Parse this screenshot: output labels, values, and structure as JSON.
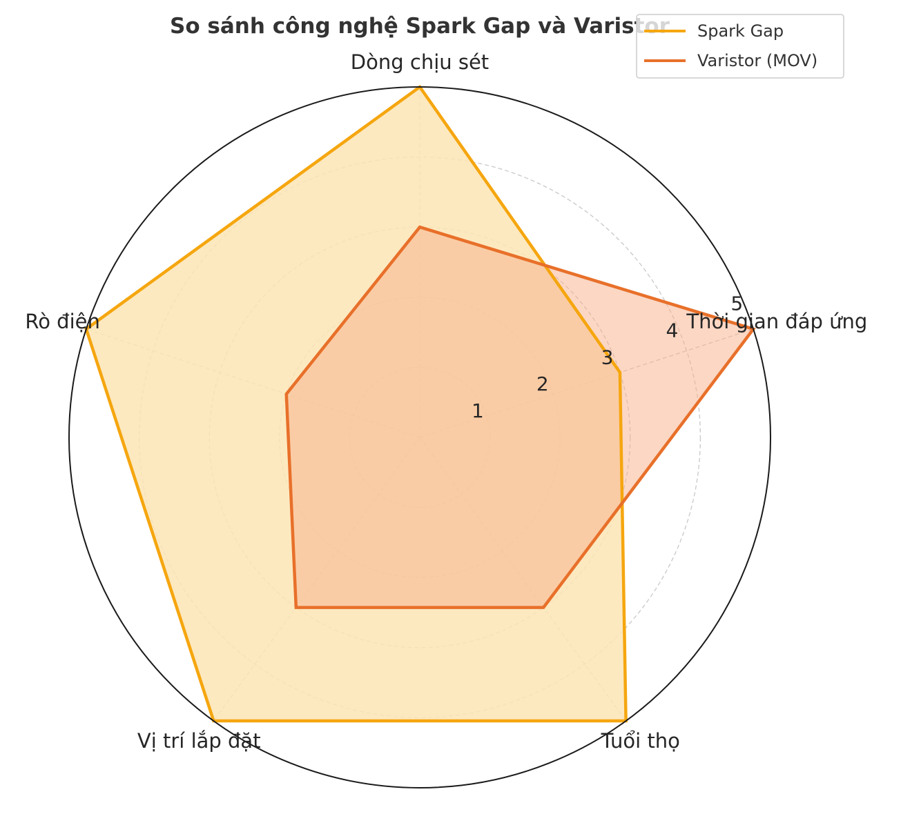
{
  "chart_data": {
    "type": "radar",
    "title": "So sánh công nghệ Spark Gap và Varistor",
    "axes": [
      "Dòng chịu sét",
      "Thời gian đáp ứng",
      "Tuổi thọ",
      "Vị trí lắp đặt",
      "Rò điện"
    ],
    "rlim": [
      0,
      5
    ],
    "rticks": [
      1,
      2,
      3,
      4,
      5
    ],
    "grid": true,
    "legend_position": "top-right",
    "series": [
      {
        "name": "Spark Gap",
        "values": [
          5,
          3,
          5,
          5,
          5
        ],
        "color": "#F5A60F",
        "fill": "#FDE5B5"
      },
      {
        "name": "Varistor (MOV)",
        "values": [
          3,
          5,
          3,
          3,
          2
        ],
        "color": "#E8702A",
        "fill": "#F7B08A"
      }
    ]
  }
}
